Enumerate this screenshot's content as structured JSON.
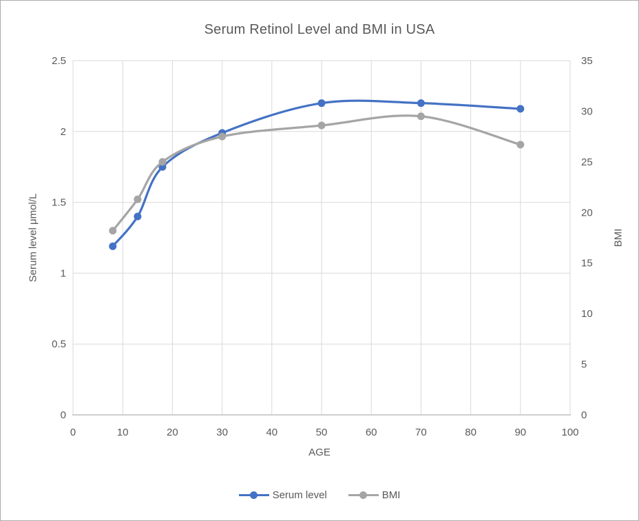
{
  "chart_data": {
    "type": "line",
    "title": "Serum Retinol Level and BMI in USA",
    "x": [
      8,
      13,
      18,
      30,
      50,
      70,
      90
    ],
    "series": [
      {
        "name": "Serum level",
        "axis": "left",
        "color": "#4472C4",
        "marker": "circle",
        "smooth": true,
        "values": [
          1.19,
          1.4,
          1.75,
          1.99,
          2.2,
          2.2,
          2.16
        ]
      },
      {
        "name": "BMI",
        "axis": "right",
        "color": "#A5A5A5",
        "marker": "circle",
        "smooth": true,
        "values": [
          18.2,
          21.3,
          25,
          27.5,
          28.6,
          29.5,
          26.7
        ]
      }
    ],
    "x_axis": {
      "label": "AGE",
      "min": 0,
      "max": 100,
      "step": 10
    },
    "left_axis": {
      "label": "Serum level μmol/L",
      "min": 0,
      "max": 2.5,
      "step": 0.5
    },
    "right_axis": {
      "label": "BMI",
      "min": 0,
      "max": 35,
      "step": 5
    },
    "legend": {
      "position": "bottom",
      "entries": [
        "Serum level",
        "BMI"
      ]
    },
    "grid": true,
    "colors": {
      "grid": "#D9D9D9",
      "axis_line": "#BFBFBF",
      "text": "#595959",
      "title": "#595959",
      "background": "#FFFFFF",
      "border": "#ADABAB"
    }
  }
}
